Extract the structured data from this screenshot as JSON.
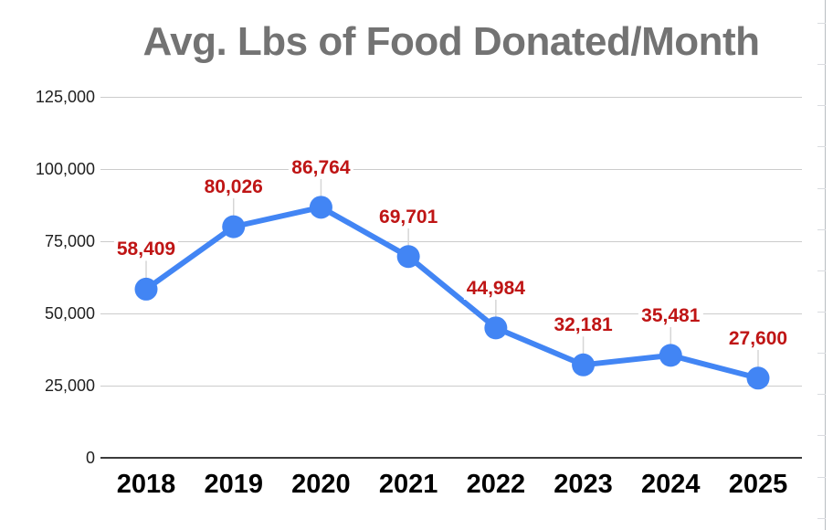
{
  "chart_data": {
    "type": "line",
    "title": "Avg. Lbs of Food Donated/Month",
    "categories": [
      "2018",
      "2019",
      "2020",
      "2021",
      "2022",
      "2023",
      "2024",
      "2025"
    ],
    "values": [
      58409,
      80026,
      86764,
      69701,
      44984,
      32181,
      35481,
      27600
    ],
    "value_labels": [
      "58,409",
      "80,026",
      "86,764",
      "69,701",
      "44,984",
      "32,181",
      "35,481",
      "27,600"
    ],
    "xlabel": "",
    "ylabel": "",
    "ylim": [
      0,
      125000
    ],
    "yticks": [
      0,
      25000,
      50000,
      75000,
      100000,
      125000
    ],
    "ytick_labels": [
      "0",
      "25,000",
      "50,000",
      "75,000",
      "100,000",
      "125,000"
    ],
    "grid": true,
    "legend": "none",
    "colors": {
      "line": "#4285f4",
      "point": "#4285f4",
      "data_label": "#bf1515",
      "title": "#737373",
      "gridline": "#cccccc",
      "axis": "#3c3c3c",
      "leader_line": "#d5d5d5"
    }
  }
}
